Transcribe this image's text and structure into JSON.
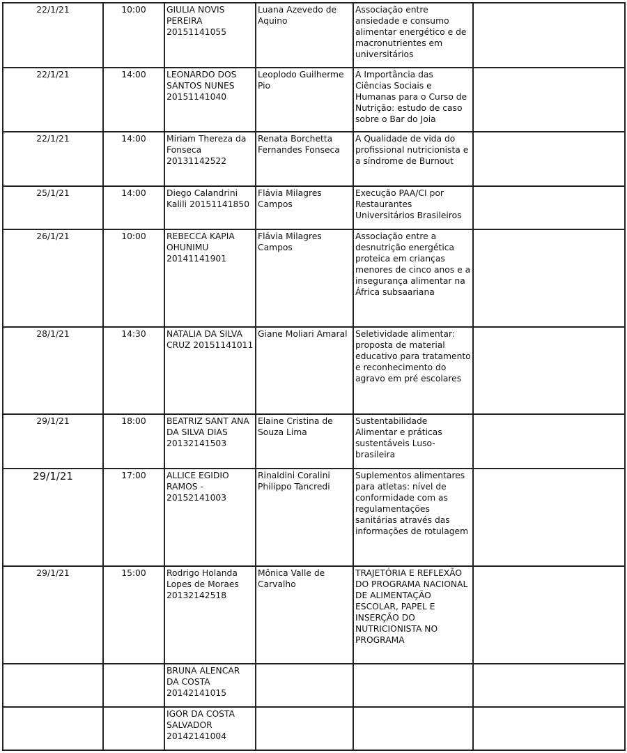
{
  "rows": [
    {
      "date": "22/1/21",
      "time": "10:00",
      "student": "GIULIA NOVIS PEREIRA 20151141055",
      "advisor": "Luana Azevedo de Aquino",
      "title": "Associação entre ansiedade e consumo alimentar energético e de macronutrientes em universitários",
      "extra": ""
    },
    {
      "date": "22/1/21",
      "time": "14:00",
      "student": "LEONARDO DOS SANTOS NUNES 20151141040",
      "advisor": "Leoplodo Guilherme Pio",
      "title": "A Importância das Ciências Sociais e Humanas para o Curso de Nutrição: estudo de caso sobre o Bar do Joia",
      "extra": ""
    },
    {
      "date": "22/1/21",
      "time": "14:00",
      "student": "Miriam Thereza da Fonseca 20131142522",
      "advisor": "Renata Borchetta Fernandes Fonseca",
      "title": "A Qualidade de vida do profissional nutricionista e a síndrome de Burnout",
      "extra": ""
    },
    {
      "date": "25/1/21",
      "time": "14:00",
      "student": "Diego Calandrini Kalili 20151141850",
      "advisor": "Flávia Milagres Campos",
      "title": "Execução PAA/CI por Restaurantes Universitários Brasileiros",
      "extra": ""
    },
    {
      "date": "26/1/21",
      "time": "10:00",
      "student": "REBECCA KAPIA OHUNIMU 20141141901",
      "advisor": "Flávia Milagres Campos",
      "title": "Associação entre a desnutrição energética proteica em crianças menores de cinco anos e a insegurança alimentar na África subsaariana",
      "extra": ""
    },
    {
      "date": "28/1/21",
      "time": "14:30",
      "student": "NATALIA DA SILVA CRUZ 20151141011",
      "advisor": "Giane Moliari Amaral",
      "title": "Seletividade alimentar: proposta de material educativo para tratamento e reconhecimento do agravo em pré escolares",
      "extra": ""
    },
    {
      "date": "29/1/21",
      "time": "18:00",
      "student": "BEATRIZ SANT ANA DA SILVA DIAS 20132141503",
      "advisor": "Elaine Cristina de Souza Lima",
      "title": "Sustentabilidade Alimentar e práticas sustentáveis Luso-brasileira",
      "extra": ""
    },
    {
      "date": "29/1/21",
      "time": "17:00",
      "student": "ALLICE EGIDIO RAMOS - 20152141003",
      "advisor": "Rinaldini Coralini Philippo Tancredi",
      "title": "Suplementos alimentares para atletas: nível de conformidade com as regulamentações sanitárias através das informações de rotulagem",
      "extra": ""
    },
    {
      "date": "29/1/21",
      "time": "15:00",
      "student": "Rodrigo Holanda Lopes de Moraes 20132142518",
      "advisor": "Mônica Valle de Carvalho",
      "title": "TRAJETÓRIA E REFLEXÃO DO PROGRAMA NACIONAL DE ALIMENTAÇÃO ESCOLAR, PAPEL E INSERÇÃO DO NUTRICIONISTA NO PROGRAMA",
      "extra": ""
    },
    {
      "date": "",
      "time": "",
      "student": "BRUNA ALENCAR DA COSTA 20142141015",
      "advisor": "",
      "title": "",
      "extra": ""
    },
    {
      "date": "",
      "time": "",
      "student": "IGOR DA COSTA SALVADOR 20142141004",
      "advisor": "",
      "title": "",
      "extra": ""
    }
  ]
}
